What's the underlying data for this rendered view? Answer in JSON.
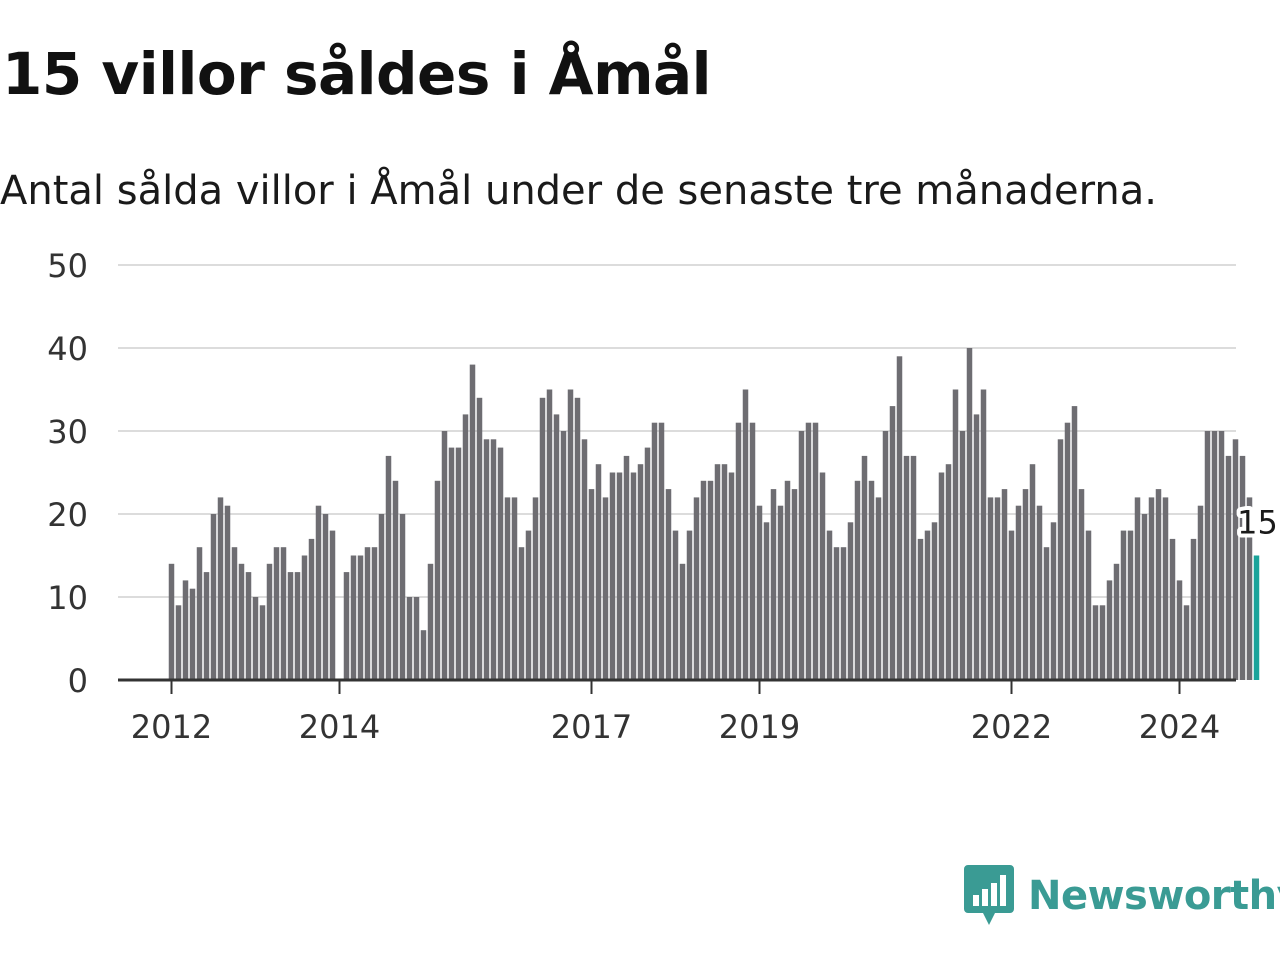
{
  "title": "15 villor såldes i Åmål",
  "subtitle": "Antal sålda villor i Åmål under de senaste tre månaderna.",
  "brand": {
    "name": "Newsworthy",
    "icon": "newsworthy-logo-icon",
    "color": "#3a9b94"
  },
  "chart_data": {
    "type": "bar",
    "title": "15 villor såldes i Åmål",
    "subtitle": "Antal sålda villor i Åmål under de senaste tre månaderna.",
    "xlabel": "",
    "ylabel": "",
    "ylim": [
      0,
      50
    ],
    "yticks": [
      0,
      10,
      20,
      30,
      40,
      50
    ],
    "grid": true,
    "x_start": "2012-01",
    "x_end": "2024-12",
    "x_tick_labels": [
      {
        "label": "2012",
        "x": "2012-01"
      },
      {
        "label": "2014",
        "x": "2014-01"
      },
      {
        "label": "2017",
        "x": "2017-01"
      },
      {
        "label": "2019",
        "x": "2019-01"
      },
      {
        "label": "2022",
        "x": "2022-01"
      },
      {
        "label": "2024",
        "x": "2024-01"
      }
    ],
    "series": [
      {
        "color": "#6e6d72",
        "highlight_color": "#1aa39a",
        "values": [
          14,
          9,
          12,
          11,
          16,
          13,
          20,
          22,
          21,
          16,
          14,
          13,
          10,
          9,
          14,
          16,
          16,
          13,
          13,
          15,
          17,
          21,
          20,
          18,
          null,
          13,
          15,
          15,
          16,
          16,
          20,
          27,
          24,
          20,
          10,
          10,
          6,
          14,
          24,
          30,
          28,
          28,
          32,
          38,
          34,
          29,
          29,
          28,
          22,
          22,
          16,
          18,
          22,
          34,
          35,
          32,
          30,
          35,
          34,
          29,
          23,
          26,
          22,
          25,
          25,
          27,
          25,
          26,
          28,
          31,
          31,
          23,
          18,
          14,
          18,
          22,
          24,
          24,
          26,
          26,
          25,
          31,
          35,
          31,
          21,
          19,
          23,
          21,
          24,
          23,
          30,
          31,
          31,
          25,
          18,
          16,
          16,
          19,
          24,
          27,
          24,
          22,
          30,
          33,
          39,
          27,
          27,
          17,
          18,
          19,
          25,
          26,
          35,
          30,
          40,
          32,
          35,
          22,
          22,
          23,
          18,
          21,
          23,
          26,
          21,
          16,
          19,
          29,
          31,
          33,
          23,
          18,
          9,
          9,
          12,
          14,
          18,
          18,
          22,
          20,
          22,
          23,
          22,
          17,
          12,
          9,
          17,
          21,
          30,
          30,
          30,
          27,
          29,
          27,
          22,
          15
        ]
      }
    ],
    "annotations": [
      {
        "label": "15",
        "x": "2024-12",
        "value": 15
      }
    ]
  }
}
